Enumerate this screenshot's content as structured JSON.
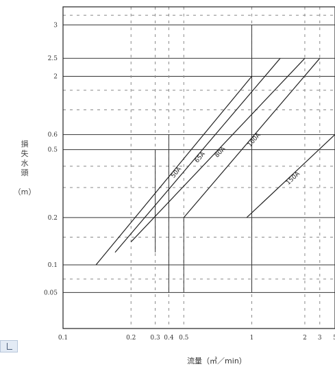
{
  "chart_data": {
    "type": "line",
    "title": "",
    "xlabel": "流量（㎥／min）",
    "ylabel_chars": [
      "損",
      "失",
      "水",
      "頭"
    ],
    "ylabel_unit": "（m）",
    "x_scale": "nonlinear",
    "y_scale": "nonlinear",
    "grid": true,
    "x_ticks": [
      {
        "value": 0.1,
        "label": "0.1"
      },
      {
        "value": 0.2,
        "label": "0.2"
      },
      {
        "value": 0.3,
        "label": "0.3"
      },
      {
        "value": 0.4,
        "label": "0.4"
      },
      {
        "value": 0.5,
        "label": "0.5"
      },
      {
        "value": 1,
        "label": "1"
      },
      {
        "value": 2,
        "label": "2"
      },
      {
        "value": 3,
        "label": "3"
      },
      {
        "value": 5,
        "label": "5"
      }
    ],
    "y_ticks": [
      {
        "value": 3,
        "label": "3"
      },
      {
        "value": 2.5,
        "label": "2.5"
      },
      {
        "value": 2,
        "label": "2"
      },
      {
        "value": 0.6,
        "label": "0.6"
      },
      {
        "value": 0.5,
        "label": "0.5"
      },
      {
        "value": 0.2,
        "label": "0.2"
      },
      {
        "value": 0.1,
        "label": "0.1"
      },
      {
        "value": 0.05,
        "label": "0.05"
      }
    ],
    "x_axis_map": [
      [
        0.1,
        0.0
      ],
      [
        0.2,
        0.25
      ],
      [
        0.3,
        0.339
      ],
      [
        0.4,
        0.389
      ],
      [
        0.5,
        0.444
      ],
      [
        1,
        0.694
      ],
      [
        2,
        0.889
      ],
      [
        3,
        0.944
      ],
      [
        5,
        1.0
      ]
    ],
    "y_axis_map": [
      [
        0.03,
        0.0
      ],
      [
        0.05,
        0.112
      ],
      [
        0.1,
        0.198
      ],
      [
        0.2,
        0.345
      ],
      [
        0.5,
        0.556
      ],
      [
        0.6,
        0.603
      ],
      [
        2,
        0.784
      ],
      [
        2.5,
        0.84
      ],
      [
        3,
        0.944
      ],
      [
        4,
        1.0
      ]
    ],
    "series": [
      {
        "name": "50A",
        "points": [
          [
            0.14,
            0.1
          ],
          [
            1.0,
            2.0
          ]
        ]
      },
      {
        "name": "65A",
        "points": [
          [
            0.17,
            0.12
          ],
          [
            1.45,
            2.5
          ]
        ]
      },
      {
        "name": "80A",
        "points": [
          [
            0.2,
            0.14
          ],
          [
            2.0,
            2.5
          ]
        ]
      },
      {
        "name": "100A",
        "points": [
          [
            0.5,
            0.2
          ],
          [
            3.0,
            2.5
          ]
        ]
      },
      {
        "name": "150A",
        "points": [
          [
            0.95,
            0.2
          ],
          [
            5.0,
            0.6
          ]
        ]
      }
    ]
  }
}
